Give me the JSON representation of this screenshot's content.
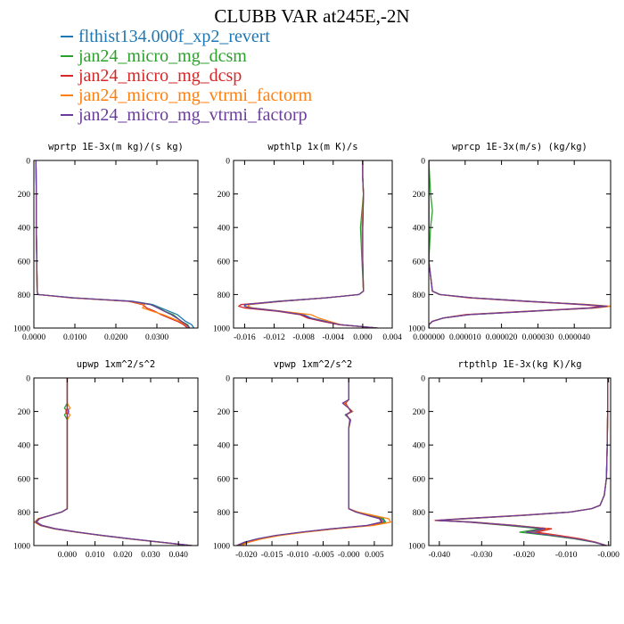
{
  "title": "CLUBB VAR at245E,-2N",
  "legend": [
    {
      "label": "flthist134.000f_xp2_revert",
      "color": "#1f77b4"
    },
    {
      "label": "jan24_micro_mg_dcsm",
      "color": "#2ca02c"
    },
    {
      "label": "jan24_micro_mg_dcsp",
      "color": "#d62728"
    },
    {
      "label": "jan24_micro_mg_vtrmi_factorm",
      "color": "#ff7f0e"
    },
    {
      "label": "jan24_micro_mg_vtrmi_factorp",
      "color": "#6a3d9a"
    }
  ],
  "chart_data": [
    {
      "type": "line",
      "title": "wprtp  1E-3x(m kg)/(s kg)",
      "xlim": [
        0.0,
        0.04
      ],
      "xticks": [
        0.0,
        0.01,
        0.02,
        0.03
      ],
      "xtick_labels": [
        "0.0000",
        "0.0100",
        "0.0200",
        "0.0300"
      ],
      "ylim": [
        1000,
        0
      ],
      "yticks": [
        0,
        200,
        400,
        600,
        800,
        1000
      ],
      "ytick_labels": [
        "0",
        "200",
        "400",
        "600",
        "800",
        "1000"
      ],
      "y": [
        0,
        200,
        400,
        600,
        780,
        800,
        820,
        840,
        860,
        880,
        900,
        920,
        940,
        960,
        980,
        1000
      ],
      "series": [
        {
          "name": "flthist134.000f_xp2_revert",
          "x": [
            0.0005,
            0.0006,
            0.0006,
            0.0007,
            0.0008,
            0.001,
            0.01,
            0.024,
            0.029,
            0.031,
            0.033,
            0.035,
            0.036,
            0.037,
            0.0385,
            0.039
          ]
        },
        {
          "name": "jan24_micro_mg_dcsm",
          "x": [
            0.0005,
            0.0006,
            0.0006,
            0.0007,
            0.0008,
            0.001,
            0.0095,
            0.0235,
            0.0285,
            0.0305,
            0.032,
            0.034,
            0.035,
            0.036,
            0.0375,
            0.038
          ]
        },
        {
          "name": "jan24_micro_mg_dcsp",
          "x": [
            0.0005,
            0.0006,
            0.0006,
            0.0007,
            0.0008,
            0.001,
            0.009,
            0.023,
            0.0265,
            0.0275,
            0.0295,
            0.031,
            0.033,
            0.035,
            0.0365,
            0.0375
          ]
        },
        {
          "name": "jan24_micro_mg_vtrmi_factorm",
          "x": [
            0.0005,
            0.0006,
            0.0006,
            0.0007,
            0.0008,
            0.001,
            0.0092,
            0.0232,
            0.027,
            0.0265,
            0.029,
            0.0315,
            0.0335,
            0.0355,
            0.037,
            0.038
          ]
        },
        {
          "name": "jan24_micro_mg_vtrmi_factorp",
          "x": [
            0.0005,
            0.0006,
            0.0006,
            0.0007,
            0.0008,
            0.001,
            0.0095,
            0.0235,
            0.0285,
            0.0302,
            0.0318,
            0.0335,
            0.0348,
            0.036,
            0.0372,
            0.038
          ]
        }
      ]
    },
    {
      "type": "line",
      "title": "wpthlp  1x(m K)/s",
      "xlim": [
        -0.0175,
        0.004
      ],
      "xticks": [
        -0.016,
        -0.012,
        -0.008,
        -0.004,
        0.0,
        0.004
      ],
      "xtick_labels": [
        "-0.016",
        "-0.012",
        "-0.008",
        "-0.004",
        "0.000",
        "0.004"
      ],
      "ylim": [
        1000,
        0
      ],
      "yticks": [
        0,
        200,
        400,
        600,
        800,
        1000
      ],
      "ytick_labels": [
        "0",
        "200",
        "400",
        "600",
        "800",
        "1000"
      ],
      "y": [
        0,
        100,
        200,
        400,
        600,
        780,
        800,
        820,
        840,
        860,
        870,
        880,
        900,
        920,
        940,
        960,
        980,
        1000
      ],
      "series": [
        {
          "name": "flthist134.000f_xp2_revert",
          "x": [
            0.0,
            0.0,
            0.0001,
            0.0,
            0.0,
            0.0001,
            -0.0005,
            -0.005,
            -0.011,
            -0.0155,
            -0.0155,
            -0.015,
            -0.011,
            -0.008,
            -0.007,
            -0.005,
            -0.003,
            0.002
          ]
        },
        {
          "name": "jan24_micro_mg_dcsm",
          "x": [
            0.0,
            0.0,
            0.0001,
            -0.0003,
            -0.0001,
            0.0001,
            -0.0005,
            -0.005,
            -0.0115,
            -0.0158,
            -0.016,
            -0.0152,
            -0.0112,
            -0.0082,
            -0.0072,
            -0.0052,
            -0.003,
            0.002
          ]
        },
        {
          "name": "jan24_micro_mg_dcsp",
          "x": [
            0.0,
            0.0,
            0.0001,
            0.0,
            0.0,
            0.0001,
            -0.0005,
            -0.005,
            -0.011,
            -0.0165,
            -0.0168,
            -0.016,
            -0.0115,
            -0.0085,
            -0.0075,
            -0.0055,
            -0.0032,
            0.002
          ]
        },
        {
          "name": "jan24_micro_mg_vtrmi_factorm",
          "x": [
            0.0,
            0.0,
            0.0001,
            -0.0001,
            0.0,
            0.0001,
            -0.0005,
            -0.005,
            -0.011,
            -0.0155,
            -0.0155,
            -0.015,
            -0.011,
            -0.007,
            -0.006,
            -0.0045,
            -0.003,
            0.002
          ]
        },
        {
          "name": "jan24_micro_mg_vtrmi_factorp",
          "x": [
            0.0,
            0.0,
            0.0001,
            0.0,
            0.0,
            0.0001,
            -0.0005,
            -0.005,
            -0.0112,
            -0.016,
            -0.016,
            -0.0153,
            -0.0112,
            -0.0082,
            -0.0072,
            -0.0052,
            -0.003,
            0.002
          ]
        }
      ]
    },
    {
      "type": "line",
      "title": "wprcp  1E-3x(m/s) (kg/kg)",
      "xlim": [
        0.0,
        5e-05
      ],
      "xticks": [
        0.0,
        1e-05,
        2e-05,
        3e-05,
        4e-05
      ],
      "xtick_labels": [
        "0.000000",
        "0.000010",
        "0.000020",
        "0.000030",
        "0.000040"
      ],
      "ylim": [
        1000,
        0
      ],
      "yticks": [
        0,
        200,
        400,
        600,
        800,
        1000
      ],
      "ytick_labels": [
        "0",
        "200",
        "400",
        "600",
        "800",
        "1000"
      ],
      "y": [
        0,
        200,
        300,
        400,
        600,
        780,
        800,
        820,
        840,
        860,
        870,
        880,
        900,
        920,
        940,
        960,
        980,
        1000
      ],
      "series": [
        {
          "name": "flthist134.000f_xp2_revert",
          "x": [
            0.0,
            0.0,
            0.0,
            0.0,
            0.0,
            1e-06,
            3e-06,
            1.2e-05,
            2.7e-05,
            4.3e-05,
            4.9e-05,
            4.5e-05,
            2.8e-05,
            1.1e-05,
            4e-06,
            1e-06,
            0.0,
            0.0
          ]
        },
        {
          "name": "jan24_micro_mg_dcsm",
          "x": [
            0.0,
            5e-07,
            1e-06,
            5e-07,
            0.0,
            1e-06,
            3e-06,
            1.2e-05,
            2.7e-05,
            4.3e-05,
            4.9e-05,
            4.5e-05,
            2.8e-05,
            1.1e-05,
            4e-06,
            1e-06,
            0.0,
            0.0
          ]
        },
        {
          "name": "jan24_micro_mg_dcsp",
          "x": [
            0.0,
            0.0,
            0.0,
            0.0,
            0.0,
            1e-06,
            3e-06,
            1.1e-05,
            2.6e-05,
            4.2e-05,
            4.8e-05,
            4.4e-05,
            2.7e-05,
            1e-05,
            4e-06,
            1e-06,
            0.0,
            0.0
          ]
        },
        {
          "name": "jan24_micro_mg_vtrmi_factorm",
          "x": [
            0.0,
            0.0,
            0.0,
            0.0,
            0.0,
            1e-06,
            3e-06,
            1.2e-05,
            2.7e-05,
            4.4e-05,
            5e-05,
            4.6e-05,
            2.8e-05,
            1.1e-05,
            4e-06,
            1e-06,
            0.0,
            0.0
          ]
        },
        {
          "name": "jan24_micro_mg_vtrmi_factorp",
          "x": [
            0.0,
            0.0,
            0.0,
            0.0,
            0.0,
            1e-06,
            3e-06,
            1.2e-05,
            2.7e-05,
            4.3e-05,
            4.9e-05,
            4.5e-05,
            2.8e-05,
            1.1e-05,
            4e-06,
            1e-06,
            0.0,
            0.0
          ]
        }
      ]
    },
    {
      "type": "line",
      "title": "upwp  1xm^2/s^2",
      "xlim": [
        -0.012,
        0.047
      ],
      "xticks": [
        0.0,
        0.01,
        0.02,
        0.03,
        0.04
      ],
      "xtick_labels": [
        "0.000",
        "0.010",
        "0.020",
        "0.030",
        "0.040"
      ],
      "ylim": [
        1000,
        0
      ],
      "yticks": [
        0,
        200,
        400,
        600,
        800,
        1000
      ],
      "ytick_labels": [
        "0",
        "200",
        "400",
        "600",
        "800",
        "1000"
      ],
      "y": [
        0,
        150,
        180,
        200,
        220,
        250,
        300,
        400,
        600,
        780,
        800,
        820,
        840,
        860,
        880,
        900,
        920,
        940,
        960,
        980,
        1000
      ],
      "series": [
        {
          "name": "flthist134.000f_xp2_revert",
          "x": [
            0.0,
            0.0,
            0.0,
            0.0005,
            0.0,
            0.0,
            0.0,
            0.0,
            0.0,
            0.0,
            -0.002,
            -0.006,
            -0.01,
            -0.011,
            -0.009,
            -0.004,
            0.004,
            0.013,
            0.023,
            0.034,
            0.045
          ]
        },
        {
          "name": "jan24_micro_mg_dcsm",
          "x": [
            0.0,
            0.0,
            -0.001,
            0.0,
            -0.001,
            0.0,
            0.0,
            0.0,
            0.0,
            0.0,
            -0.002,
            -0.006,
            -0.01,
            -0.0115,
            -0.0095,
            -0.0045,
            0.0035,
            0.0125,
            0.0225,
            0.0335,
            0.0445
          ]
        },
        {
          "name": "jan24_micro_mg_dcsp",
          "x": [
            0.0,
            0.0,
            0.0,
            -0.0005,
            0.0,
            0.0,
            0.0,
            0.0,
            0.0,
            0.0,
            -0.002,
            -0.006,
            -0.01,
            -0.0112,
            -0.0092,
            -0.0042,
            0.0038,
            0.0128,
            0.0228,
            0.0338,
            0.0448
          ]
        },
        {
          "name": "jan24_micro_mg_vtrmi_factorm",
          "x": [
            0.0,
            0.0,
            0.001,
            0.0,
            0.001,
            0.0,
            0.0,
            0.0,
            0.0,
            0.0,
            -0.002,
            -0.006,
            -0.0105,
            -0.0118,
            -0.0098,
            -0.0048,
            0.0032,
            0.0122,
            0.0222,
            0.0332,
            0.0442
          ]
        },
        {
          "name": "jan24_micro_mg_vtrmi_factorp",
          "x": [
            0.0,
            0.0,
            0.0,
            0.0005,
            0.0,
            0.0,
            0.0,
            0.0,
            0.0,
            0.0,
            -0.002,
            -0.006,
            -0.0102,
            -0.0114,
            -0.0094,
            -0.0044,
            0.0036,
            0.0126,
            0.0226,
            0.0336,
            0.0446
          ]
        }
      ]
    },
    {
      "type": "line",
      "title": "vpwp  1xm^2/s^2",
      "xlim": [
        -0.0225,
        0.0085
      ],
      "xticks": [
        -0.02,
        -0.015,
        -0.01,
        -0.005,
        0.0,
        0.005
      ],
      "xtick_labels": [
        "-0.020",
        "-0.015",
        "-0.010",
        "-0.005",
        "-0.000",
        "0.005"
      ],
      "ylim": [
        1000,
        0
      ],
      "yticks": [
        0,
        200,
        400,
        600,
        800,
        1000
      ],
      "ytick_labels": [
        "0",
        "200",
        "400",
        "600",
        "800",
        "1000"
      ],
      "y": [
        0,
        130,
        150,
        180,
        200,
        220,
        250,
        300,
        400,
        600,
        780,
        800,
        820,
        840,
        860,
        880,
        900,
        920,
        940,
        960,
        980,
        1000
      ],
      "series": [
        {
          "name": "flthist134.000f_xp2_revert",
          "x": [
            0.0,
            0.0,
            -0.0008,
            0.0,
            0.0005,
            -0.0005,
            0.0003,
            0.0,
            0.0,
            0.0,
            0.0,
            0.0015,
            0.004,
            0.0065,
            0.007,
            0.004,
            -0.003,
            -0.009,
            -0.014,
            -0.0175,
            -0.02,
            -0.0215
          ]
        },
        {
          "name": "jan24_micro_mg_dcsm",
          "x": [
            0.0,
            0.0,
            -0.001,
            0.0,
            0.0007,
            -0.0007,
            0.0004,
            0.0,
            0.0,
            0.0,
            0.0,
            0.0015,
            0.0042,
            0.0068,
            0.0072,
            0.0042,
            -0.0028,
            -0.0088,
            -0.0138,
            -0.0173,
            -0.0198,
            -0.0213
          ]
        },
        {
          "name": "jan24_micro_mg_dcsp",
          "x": [
            0.0,
            0.0,
            -0.0006,
            0.0,
            0.0004,
            -0.0004,
            0.0002,
            0.0,
            0.0,
            0.0,
            0.0,
            0.0014,
            0.0038,
            0.0062,
            0.0066,
            0.0038,
            -0.0032,
            -0.0092,
            -0.0142,
            -0.0177,
            -0.0202,
            -0.0217
          ]
        },
        {
          "name": "jan24_micro_mg_vtrmi_factorm",
          "x": [
            0.0,
            0.0,
            -0.0009,
            0.0,
            0.0008,
            -0.0006,
            0.0004,
            0.0,
            0.0,
            0.0,
            0.0,
            0.0018,
            0.0048,
            0.0078,
            0.0082,
            0.0048,
            -0.0025,
            -0.0085,
            -0.0135,
            -0.017,
            -0.0195,
            -0.021
          ]
        },
        {
          "name": "jan24_micro_mg_vtrmi_factorp",
          "x": [
            0.0,
            0.0,
            -0.0012,
            0.0,
            0.0006,
            -0.0006,
            0.0003,
            0.0,
            0.0,
            0.0,
            0.0,
            0.0014,
            0.0036,
            0.006,
            0.0064,
            0.0036,
            -0.0034,
            -0.0094,
            -0.0144,
            -0.0179,
            -0.0204,
            -0.0219
          ]
        }
      ]
    },
    {
      "type": "line",
      "title": "rtpthlp  1E-3x(kg K)/kg",
      "xlim": [
        -0.0425,
        0.0005
      ],
      "xticks": [
        -0.04,
        -0.03,
        -0.02,
        -0.01,
        0.0
      ],
      "xtick_labels": [
        "-0.040",
        "-0.030",
        "-0.020",
        "-0.010",
        "-0.000"
      ],
      "ylim": [
        1000,
        0
      ],
      "yticks": [
        0,
        200,
        400,
        600,
        800,
        1000
      ],
      "ytick_labels": [
        "0",
        "200",
        "400",
        "600",
        "800",
        "1000"
      ],
      "y": [
        0,
        200,
        400,
        600,
        700,
        760,
        780,
        800,
        820,
        840,
        850,
        860,
        880,
        900,
        920,
        940,
        960,
        980,
        1000
      ],
      "series": [
        {
          "name": "flthist134.000f_xp2_revert",
          "x": [
            -0.0002,
            -0.0002,
            -0.0003,
            -0.0005,
            -0.001,
            -0.002,
            -0.004,
            -0.009,
            -0.02,
            -0.034,
            -0.04,
            -0.032,
            -0.022,
            -0.014,
            -0.018,
            -0.012,
            -0.007,
            -0.003,
            -0.0005
          ]
        },
        {
          "name": "jan24_micro_mg_dcsm",
          "x": [
            -0.0002,
            -0.0002,
            -0.0003,
            -0.0005,
            -0.001,
            -0.002,
            -0.004,
            -0.009,
            -0.02,
            -0.034,
            -0.04,
            -0.033,
            -0.024,
            -0.016,
            -0.021,
            -0.014,
            -0.008,
            -0.0035,
            -0.0005
          ]
        },
        {
          "name": "jan24_micro_mg_dcsp",
          "x": [
            -0.0002,
            -0.0002,
            -0.0003,
            -0.0005,
            -0.001,
            -0.002,
            -0.004,
            -0.009,
            -0.021,
            -0.035,
            -0.041,
            -0.033,
            -0.023,
            -0.0135,
            -0.017,
            -0.0115,
            -0.0065,
            -0.003,
            -0.0005
          ]
        },
        {
          "name": "jan24_micro_mg_vtrmi_factorm",
          "x": [
            -0.0002,
            -0.0002,
            -0.0003,
            -0.0005,
            -0.001,
            -0.002,
            -0.004,
            -0.009,
            -0.02,
            -0.034,
            -0.04,
            -0.032,
            -0.022,
            -0.0145,
            -0.019,
            -0.0125,
            -0.0072,
            -0.0032,
            -0.0005
          ]
        },
        {
          "name": "jan24_micro_mg_vtrmi_factorp",
          "x": [
            -0.0002,
            -0.0002,
            -0.0003,
            -0.0005,
            -0.001,
            -0.002,
            -0.004,
            -0.009,
            -0.0205,
            -0.0345,
            -0.0405,
            -0.0325,
            -0.0225,
            -0.015,
            -0.0195,
            -0.013,
            -0.0075,
            -0.0033,
            -0.0005
          ]
        }
      ]
    }
  ]
}
